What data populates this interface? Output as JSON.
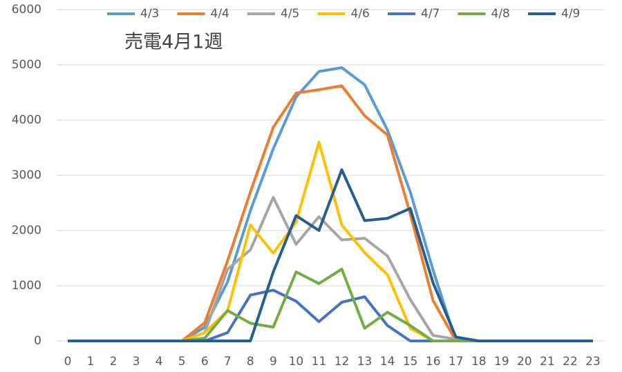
{
  "chart_data": {
    "type": "line",
    "title": "売電4月1週",
    "categories": [
      "0",
      "1",
      "2",
      "3",
      "4",
      "5",
      "6",
      "7",
      "8",
      "9",
      "10",
      "11",
      "12",
      "13",
      "14",
      "15",
      "16",
      "17",
      "18",
      "19",
      "20",
      "21",
      "22",
      "23"
    ],
    "ylim": [
      0,
      6000
    ],
    "yticks": [
      0,
      1000,
      2000,
      3000,
      4000,
      5000,
      6000
    ],
    "grid": true,
    "legend": "top",
    "series": [
      {
        "name": "4/3",
        "color": "#5b9bd5",
        "values": [
          0,
          0,
          0,
          0,
          0,
          0,
          250,
          1070,
          2360,
          3480,
          4420,
          4880,
          4950,
          4640,
          3820,
          2700,
          1280,
          0,
          0,
          0,
          0,
          0,
          0,
          0
        ]
      },
      {
        "name": "4/4",
        "color": "#ed7d31",
        "values": [
          0,
          0,
          0,
          0,
          0,
          0,
          330,
          1450,
          2700,
          3870,
          4490,
          4550,
          4620,
          4080,
          3730,
          2300,
          730,
          0,
          0,
          0,
          0,
          0,
          0,
          0
        ]
      },
      {
        "name": "4/5",
        "color": "#a5a5a5",
        "values": [
          0,
          0,
          0,
          0,
          0,
          0,
          150,
          1300,
          1650,
          2600,
          1750,
          2250,
          1830,
          1860,
          1540,
          750,
          100,
          30,
          0,
          0,
          0,
          0,
          0,
          0
        ]
      },
      {
        "name": "4/6",
        "color": "#ffc000",
        "values": [
          0,
          0,
          0,
          0,
          0,
          0,
          150,
          550,
          2100,
          1590,
          2150,
          3600,
          2100,
          1600,
          1200,
          230,
          0,
          0,
          0,
          0,
          0,
          0,
          0,
          0
        ]
      },
      {
        "name": "4/7",
        "color": "#4472c4",
        "values": [
          0,
          0,
          0,
          0,
          0,
          0,
          0,
          150,
          830,
          920,
          720,
          350,
          700,
          800,
          280,
          0,
          0,
          0,
          0,
          0,
          0,
          0,
          0,
          0
        ]
      },
      {
        "name": "4/8",
        "color": "#70ad47",
        "values": [
          0,
          0,
          0,
          0,
          0,
          0,
          50,
          550,
          320,
          250,
          1250,
          1040,
          1300,
          230,
          520,
          280,
          0,
          0,
          0,
          0,
          0,
          0,
          0,
          0
        ]
      },
      {
        "name": "4/9",
        "color": "#255e91",
        "values": [
          0,
          0,
          0,
          0,
          0,
          0,
          0,
          0,
          0,
          1250,
          2270,
          2000,
          3100,
          2180,
          2220,
          2400,
          1050,
          70,
          0,
          0,
          0,
          0,
          0,
          0
        ]
      }
    ]
  }
}
